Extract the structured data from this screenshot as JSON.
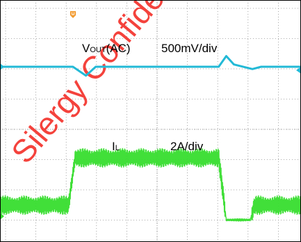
{
  "watermark": {
    "text": "Silergy Confidential",
    "color": "#ff2a22"
  },
  "colors": {
    "background": "#ffffff",
    "screen_border": "#000000",
    "grid": "#8f8f8f",
    "vout_trace": "#22b9d6",
    "il_trace": "#37dd2e",
    "trigger_marker": "#f29a2e"
  },
  "chart_data": {
    "type": "line",
    "title": "",
    "grid": true,
    "divisions": {
      "x": 10,
      "y": 8
    },
    "series": [
      {
        "name": "VOUT(AC)",
        "scale": "500mV/div",
        "unit": "div",
        "coupling": "AC",
        "x": [
          0,
          3.35,
          3.95,
          4.4,
          10.05,
          10.4,
          10.75,
          11.6,
          12.0,
          14.0
        ],
        "y": [
          1.2,
          1.2,
          0.62,
          1.2,
          1.2,
          1.9,
          1.35,
          1.05,
          1.2,
          1.2
        ]
      },
      {
        "name": "IL",
        "scale": "2A/div",
        "unit": "div",
        "x": [
          0,
          3.15,
          3.45,
          10.05,
          10.4,
          11.5,
          11.7,
          14.0
        ],
        "y": [
          -1.6,
          -1.6,
          0.0,
          0.0,
          -2.1,
          -2.1,
          -1.6,
          -1.6
        ],
        "ripple_amplitude_div": 0.32
      }
    ],
    "annotations": [
      {
        "text": "V",
        "subscript": "OUT",
        "suffix": "(AC)",
        "series": "VOUT(AC)"
      },
      {
        "text": "500mV/div",
        "series": "VOUT(AC)"
      },
      {
        "text": "I",
        "subscript": "L",
        "series": "IL"
      },
      {
        "text": "2A/div",
        "series": "IL"
      }
    ]
  }
}
